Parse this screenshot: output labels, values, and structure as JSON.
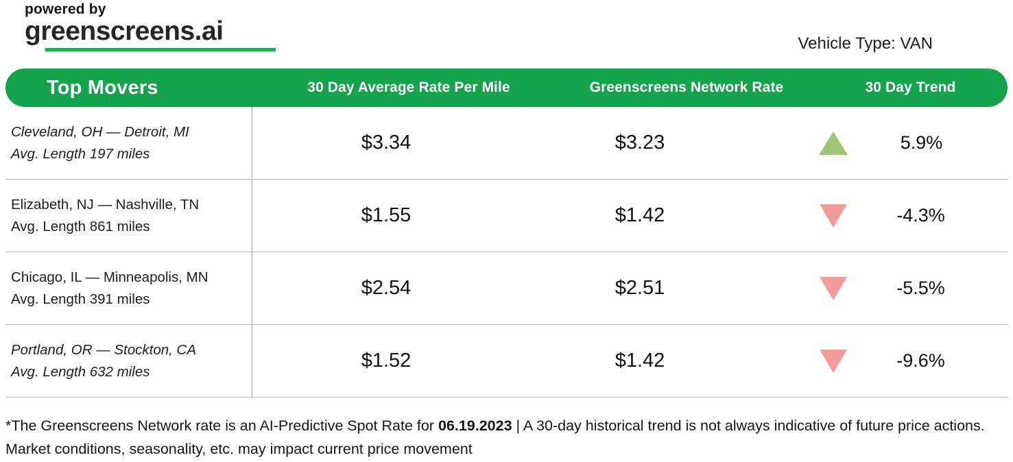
{
  "brand": {
    "powered_by": "powered by",
    "logo": "greenscreens.ai"
  },
  "vehicle_type_label": "Vehicle Type: VAN",
  "colors": {
    "header_green": "#15a24c",
    "logo_underline_green": "#1fae53",
    "trend_up_green": "#9cc57a",
    "trend_down_red": "#f29b9b"
  },
  "table": {
    "headers": [
      "Top Movers",
      "30 Day Average Rate Per Mile",
      "Greenscreens Network Rate",
      "30 Day Trend"
    ],
    "rows": [
      {
        "lane": "Cleveland, OH — Detroit, MI",
        "avg_length": "Avg. Length 197 miles",
        "avg_rate": "$3.34",
        "network_rate": "$3.23",
        "trend": "up",
        "trend_pct": "5.9%",
        "italic": true
      },
      {
        "lane": "Elizabeth, NJ — Nashville, TN",
        "avg_length": "Avg. Length 861 miles",
        "avg_rate": "$1.55",
        "network_rate": "$1.42",
        "trend": "down",
        "trend_pct": "-4.3%",
        "italic": false
      },
      {
        "lane": "Chicago, IL — Minneapolis, MN",
        "avg_length": "Avg. Length 391 miles",
        "avg_rate": "$2.54",
        "network_rate": "$2.51",
        "trend": "down",
        "trend_pct": "-5.5%",
        "italic": false
      },
      {
        "lane": "Portland, OR — Stockton, CA",
        "avg_length": "Avg. Length 632 miles",
        "avg_rate": "$1.52",
        "network_rate": "$1.42",
        "trend": "down",
        "trend_pct": "-9.6%",
        "italic": true
      }
    ]
  },
  "footer": {
    "prefix": "*The Greenscreens Network rate is an AI-Predictive Spot Rate for ",
    "date": "06.19.2023",
    "suffix": " | A 30-day historical trend is not always indicative of future price actions. Market conditions, seasonality, etc. may impact current price movement"
  }
}
